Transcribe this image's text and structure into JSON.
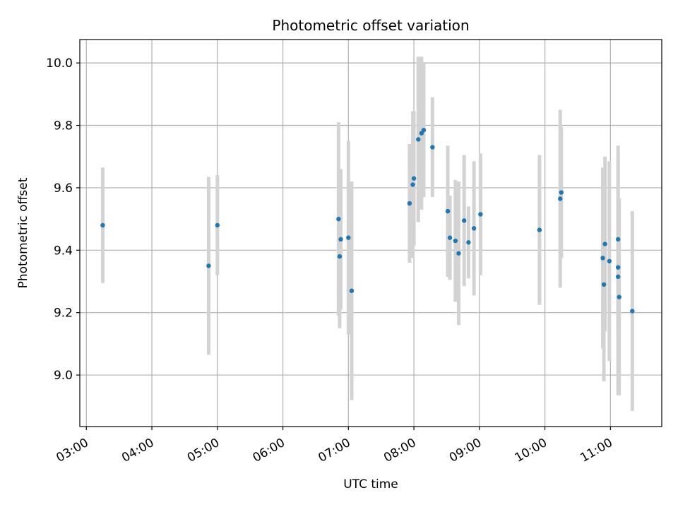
{
  "chart_data": {
    "type": "scatter",
    "title": "Photometric offset variation",
    "xlabel": "UTC time",
    "ylabel": "Photometric offset",
    "xlim": [
      "02:54",
      "11:47"
    ],
    "ylim": [
      8.835,
      10.075
    ],
    "grid": true,
    "x_ticks": [
      "03:00",
      "04:00",
      "05:00",
      "06:00",
      "07:00",
      "08:00",
      "09:00",
      "10:00",
      "11:00"
    ],
    "y_ticks": [
      "9.0",
      "9.2",
      "9.4",
      "9.6",
      "9.8",
      "10.0"
    ],
    "colors": {
      "point": "#1f77b4",
      "errorbar": "#d3d3d3",
      "grid": "#b0b0b0"
    },
    "series": [
      {
        "x": [
          "03:15",
          "04:52",
          "05:00",
          "06:51",
          "06:52",
          "06:53",
          "07:00",
          "07:03",
          "07:56",
          "07:59",
          "08:00",
          "08:04",
          "08:07",
          "08:09",
          "08:17",
          "08:31",
          "08:33",
          "08:38",
          "08:41",
          "08:46",
          "08:50",
          "08:55",
          "09:01",
          "09:55",
          "10:14",
          "10:15",
          "10:53",
          "10:54",
          "10:55",
          "10:59",
          "11:07",
          "11:07",
          "11:07",
          "11:08",
          "11:20"
        ],
        "y": [
          9.48,
          9.35,
          9.48,
          9.5,
          9.38,
          9.435,
          9.44,
          9.27,
          9.55,
          9.61,
          9.63,
          9.755,
          9.775,
          9.785,
          9.73,
          9.525,
          9.44,
          9.43,
          9.39,
          9.495,
          9.425,
          9.47,
          9.515,
          9.465,
          9.565,
          9.585,
          9.375,
          9.29,
          9.42,
          9.365,
          9.435,
          9.345,
          9.315,
          9.25,
          9.205
        ],
        "yerr": [
          0.185,
          0.285,
          0.16,
          0.31,
          0.23,
          0.225,
          0.31,
          0.35,
          0.19,
          0.235,
          0.215,
          0.265,
          0.245,
          0.215,
          0.16,
          0.21,
          0.135,
          0.195,
          0.23,
          0.21,
          0.115,
          0.215,
          0.195,
          0.24,
          0.285,
          0.21,
          0.29,
          0.31,
          0.28,
          0.32,
          0.3,
          0.21,
          0.38,
          0.315,
          0.32
        ]
      }
    ]
  }
}
